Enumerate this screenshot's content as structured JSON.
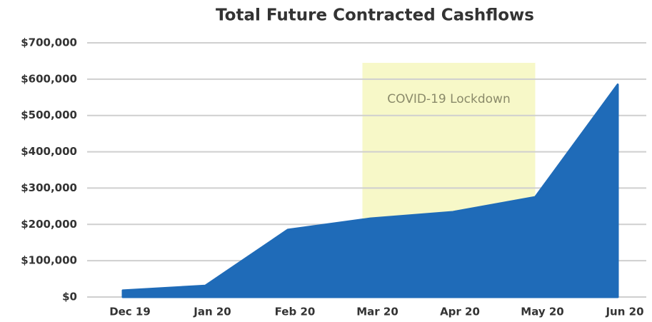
{
  "chart_data": {
    "type": "area",
    "title": "Total Future Contracted Cashflows",
    "categories": [
      "Dec 19",
      "Jan 20",
      "Feb 20",
      "Mar 20",
      "Apr 20",
      "May 20",
      "Jun 20"
    ],
    "values": [
      18000,
      31000,
      185000,
      216000,
      234000,
      275000,
      585000
    ],
    "color": "#1f6bb8",
    "ylim": [
      0,
      700000
    ],
    "yticks": [
      {
        "value": 0,
        "label": "$0"
      },
      {
        "value": 100000,
        "label": "$100,000"
      },
      {
        "value": 200000,
        "label": "$200,000"
      },
      {
        "value": 300000,
        "label": "$300,000"
      },
      {
        "value": 400000,
        "label": "$400,000"
      },
      {
        "value": 500000,
        "label": "$500,000"
      },
      {
        "value": 600000,
        "label": "$600,000"
      },
      {
        "value": 700000,
        "label": "$700,000"
      }
    ],
    "grid": true,
    "annotation": {
      "text": "COVID-19 Lockdown",
      "start": "Mar 20",
      "end": "May 20",
      "color": "#f7f8c8"
    }
  }
}
